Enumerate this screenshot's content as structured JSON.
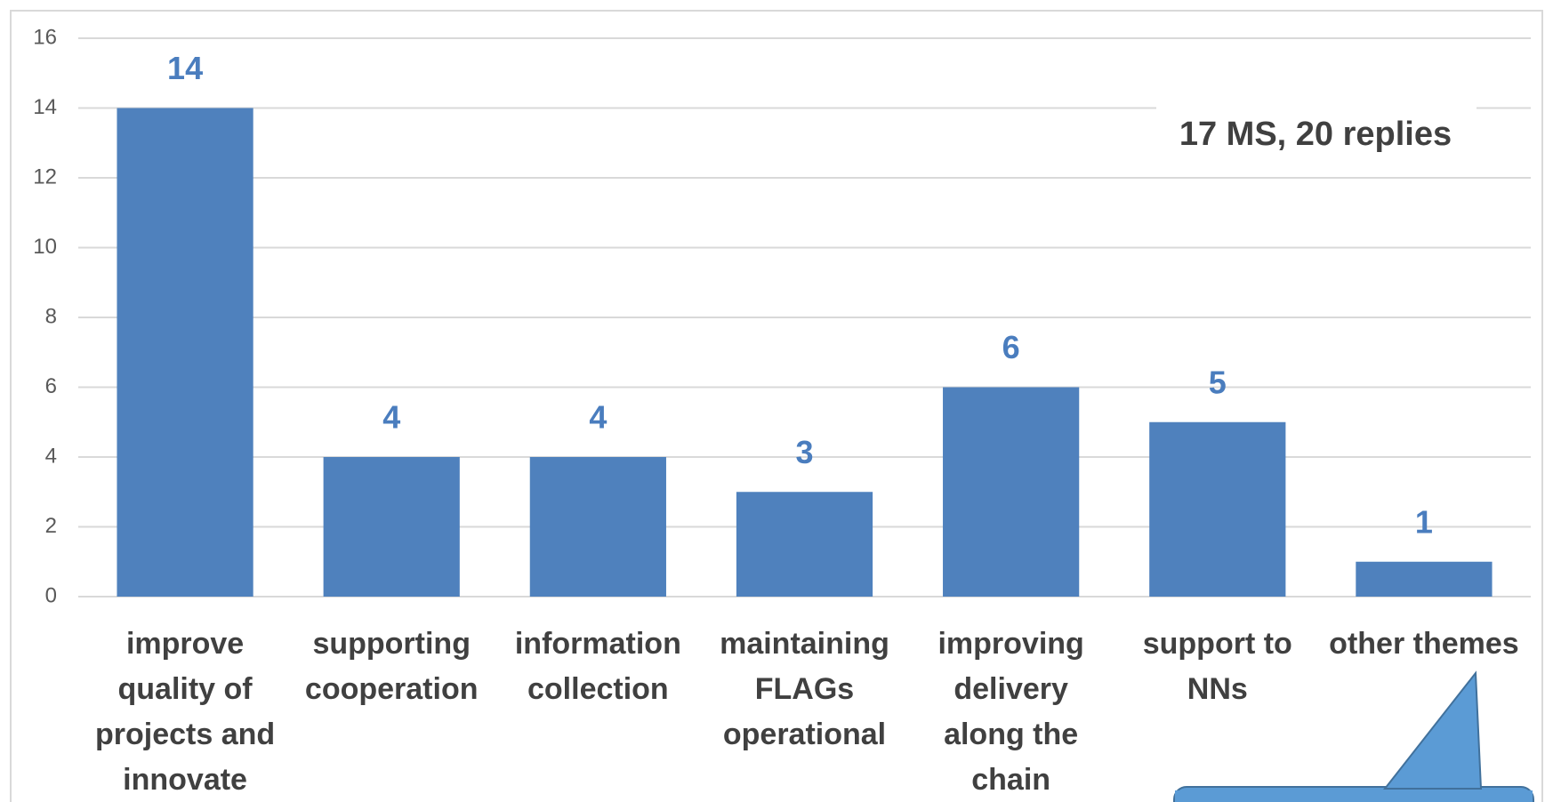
{
  "chart_data": {
    "type": "bar",
    "categories": [
      "improve quality of projects and innovate",
      "supporting cooperation",
      "information collection",
      "maintaining FLAGs operational",
      "improving delivery along the chain",
      "support to NNs",
      "other themes"
    ],
    "values": [
      14,
      4,
      4,
      3,
      6,
      5,
      1
    ],
    "color": "#4f81bd",
    "ylim": [
      0,
      16
    ],
    "yticks": [
      0,
      2,
      4,
      6,
      8,
      10,
      12,
      14,
      16
    ],
    "grid": true,
    "annotation": "17 MS, 20 replies"
  }
}
